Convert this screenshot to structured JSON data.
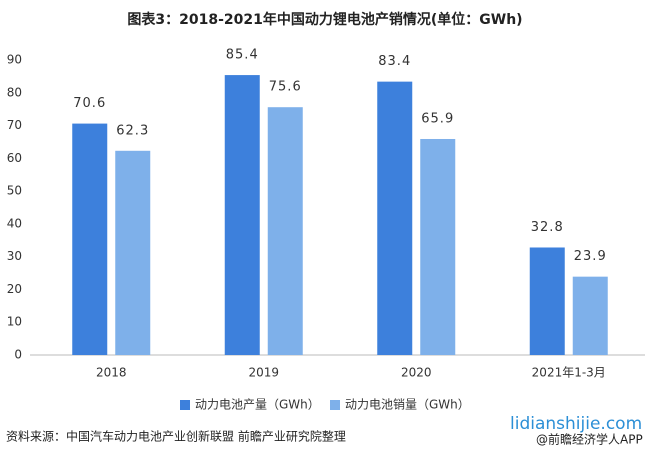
{
  "chart_data": {
    "type": "bar",
    "title": "图表3：2018-2021年中国动力锂电池产销情况(单位：GWh)",
    "categories": [
      "2018",
      "2019",
      "2020",
      "2021年1-3月"
    ],
    "series": [
      {
        "name": "动力电池产量（GWh）",
        "color": "#3d80dc",
        "values": [
          70.6,
          85.4,
          83.4,
          32.8
        ]
      },
      {
        "name": "动力电池销量（GWh）",
        "color": "#7eb0ea",
        "values": [
          62.3,
          75.6,
          65.9,
          23.9
        ]
      }
    ],
    "ylim": [
      0,
      90
    ],
    "yticks": [
      0,
      10,
      20,
      30,
      40,
      50,
      60,
      70,
      80,
      90
    ],
    "grid": false,
    "legend": "bottom",
    "source": "资料来源：中国汽车动力电池产业创新联盟 前瞻产业研究院整理",
    "website": "lidianshijie.com",
    "credit": "@前瞻经济学人APP"
  }
}
